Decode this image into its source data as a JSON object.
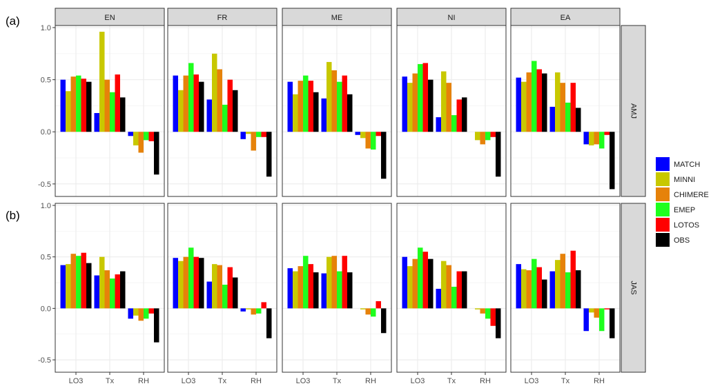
{
  "chart_data": {
    "type": "bar",
    "tags": [
      "(a)",
      "(b)"
    ],
    "facet_columns": [
      "EN",
      "FR",
      "ME",
      "NI",
      "EA"
    ],
    "facet_rows": [
      "AMJ",
      "JAS"
    ],
    "categories": [
      "LO3",
      "Tx",
      "RH"
    ],
    "series_names": [
      "MATCH",
      "MINNI",
      "CHIMERE",
      "EMEP",
      "LOTOS",
      "OBS"
    ],
    "colors": {
      "MATCH": "#0000ff",
      "MINNI": "#c8c800",
      "CHIMERE": "#e6820a",
      "EMEP": "#1eff1e",
      "LOTOS": "#ff0000",
      "OBS": "#000000"
    },
    "ylim": [
      -0.62,
      1.02
    ],
    "yticks": [
      -0.5,
      0.0,
      0.5,
      1.0
    ],
    "ytick_labels": [
      "-0.5",
      "0.0",
      "0.5",
      "1.0"
    ],
    "legend_position": "right",
    "grid": true,
    "panels": [
      {
        "row": "AMJ",
        "col": "EN",
        "values": {
          "LO3": [
            0.5,
            0.39,
            0.53,
            0.54,
            0.51,
            0.48
          ],
          "Tx": [
            0.18,
            0.96,
            0.5,
            0.38,
            0.55,
            0.33
          ],
          "RH": [
            -0.04,
            -0.13,
            -0.2,
            -0.08,
            -0.09,
            -0.41
          ]
        }
      },
      {
        "row": "AMJ",
        "col": "FR",
        "values": {
          "LO3": [
            0.54,
            0.4,
            0.54,
            0.66,
            0.55,
            0.48
          ],
          "Tx": [
            0.31,
            0.75,
            0.6,
            0.26,
            0.5,
            0.4
          ],
          "RH": [
            -0.07,
            -0.02,
            -0.18,
            -0.05,
            -0.05,
            -0.43
          ]
        }
      },
      {
        "row": "AMJ",
        "col": "ME",
        "values": {
          "LO3": [
            0.48,
            0.36,
            0.49,
            0.54,
            0.49,
            0.38
          ],
          "Tx": [
            0.32,
            0.67,
            0.59,
            0.48,
            0.54,
            0.36
          ],
          "RH": [
            -0.03,
            -0.06,
            -0.16,
            -0.17,
            -0.04,
            -0.45
          ]
        }
      },
      {
        "row": "AMJ",
        "col": "NI",
        "values": {
          "LO3": [
            0.53,
            0.47,
            0.56,
            0.65,
            0.66,
            0.5
          ],
          "Tx": [
            0.14,
            0.58,
            0.47,
            0.16,
            0.31,
            0.33
          ],
          "RH": [
            0.0,
            -0.08,
            -0.12,
            -0.08,
            -0.05,
            -0.43
          ]
        }
      },
      {
        "row": "AMJ",
        "col": "EA",
        "values": {
          "LO3": [
            0.52,
            0.48,
            0.57,
            0.68,
            0.6,
            0.56
          ],
          "Tx": [
            0.24,
            0.57,
            0.47,
            0.28,
            0.47,
            0.23
          ],
          "RH": [
            -0.12,
            -0.13,
            -0.12,
            -0.16,
            -0.03,
            -0.55
          ]
        }
      },
      {
        "row": "JAS",
        "col": "EN",
        "values": {
          "LO3": [
            0.42,
            0.43,
            0.53,
            0.51,
            0.54,
            0.44
          ],
          "Tx": [
            0.32,
            0.5,
            0.37,
            0.29,
            0.33,
            0.36
          ],
          "RH": [
            -0.1,
            -0.07,
            -0.12,
            -0.1,
            -0.05,
            -0.33
          ]
        }
      },
      {
        "row": "JAS",
        "col": "FR",
        "values": {
          "LO3": [
            0.49,
            0.46,
            0.5,
            0.59,
            0.5,
            0.49
          ],
          "Tx": [
            0.26,
            0.43,
            0.42,
            0.23,
            0.4,
            0.3
          ],
          "RH": [
            -0.03,
            -0.01,
            -0.06,
            -0.05,
            0.06,
            -0.29
          ]
        }
      },
      {
        "row": "JAS",
        "col": "ME",
        "values": {
          "LO3": [
            0.39,
            0.36,
            0.41,
            0.51,
            0.43,
            0.35
          ],
          "Tx": [
            0.34,
            0.5,
            0.51,
            0.36,
            0.51,
            0.35
          ],
          "RH": [
            0.0,
            -0.01,
            -0.06,
            -0.08,
            0.07,
            -0.24
          ]
        }
      },
      {
        "row": "JAS",
        "col": "NI",
        "values": {
          "LO3": [
            0.5,
            0.41,
            0.48,
            0.59,
            0.55,
            0.48
          ],
          "Tx": [
            0.19,
            0.46,
            0.42,
            0.21,
            0.36,
            0.36
          ],
          "RH": [
            0.0,
            -0.01,
            -0.05,
            -0.1,
            -0.17,
            -0.29
          ]
        }
      },
      {
        "row": "JAS",
        "col": "EA",
        "values": {
          "LO3": [
            0.43,
            0.38,
            0.37,
            0.48,
            0.4,
            0.28
          ],
          "Tx": [
            0.36,
            0.47,
            0.53,
            0.35,
            0.56,
            0.37
          ],
          "RH": [
            -0.22,
            -0.04,
            -0.09,
            -0.22,
            -0.01,
            -0.29
          ]
        }
      }
    ]
  }
}
